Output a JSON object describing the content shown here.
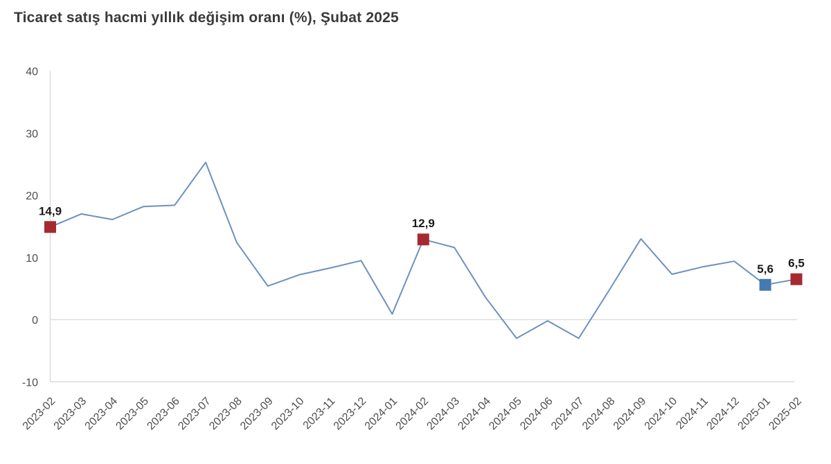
{
  "header": {
    "title": "Ticaret satış hacmi yıllık değişim oranı (%), Şubat 2025"
  },
  "chart_data": {
    "type": "line",
    "title": "Ticaret satış hacmi yıllık değişim oranı (%), Şubat 2025",
    "x": [
      "2023-02",
      "2023-03",
      "2023-04",
      "2023-05",
      "2023-06",
      "2023-07",
      "2023-08",
      "2023-09",
      "2023-10",
      "2023-11",
      "2023-12",
      "2024-01",
      "2024-02",
      "2024-03",
      "2024-04",
      "2024-05",
      "2024-06",
      "2024-07",
      "2024-08",
      "2024-09",
      "2024-10",
      "2024-11",
      "2024-12",
      "2025-01",
      "2025-02"
    ],
    "values": [
      14.9,
      17.0,
      16.1,
      18.2,
      18.4,
      25.3,
      12.4,
      5.4,
      7.2,
      8.3,
      9.5,
      0.9,
      12.9,
      11.6,
      3.6,
      -3.0,
      -0.2,
      -3.0,
      4.9,
      13.0,
      7.3,
      8.5,
      9.4,
      5.6,
      6.5
    ],
    "xlabel": "",
    "ylabel": "",
    "ylim": [
      -10,
      40
    ],
    "yticks": [
      40,
      30,
      20,
      10,
      0,
      -10
    ],
    "legend": "none",
    "grid": {
      "zero_line": true,
      "bottom_border": true,
      "left_axis": true,
      "horizontal_gridlines": false
    },
    "x_tick_rotation_deg": -45,
    "highlighted_points": [
      {
        "x": "2023-02",
        "value": 14.9,
        "label": "14,9",
        "marker": "square",
        "color": "#a52a30"
      },
      {
        "x": "2024-02",
        "value": 12.9,
        "label": "12,9",
        "marker": "square",
        "color": "#a52a30"
      },
      {
        "x": "2025-01",
        "value": 5.6,
        "label": "5,6",
        "marker": "square",
        "color": "#4678b1"
      },
      {
        "x": "2025-02",
        "value": 6.5,
        "label": "6,5",
        "marker": "square",
        "color": "#a52a30"
      }
    ],
    "colors": {
      "line": "#6b90bf",
      "marker_red": "#a52a30",
      "marker_blue": "#4678b1",
      "axis_text": "#4d4d4d",
      "grid_line": "#dcdcdc",
      "axis_line": "#d8d8d8",
      "title_text": "#3a3a3a",
      "data_label": "#1a1a1a",
      "background": "#ffffff"
    }
  }
}
